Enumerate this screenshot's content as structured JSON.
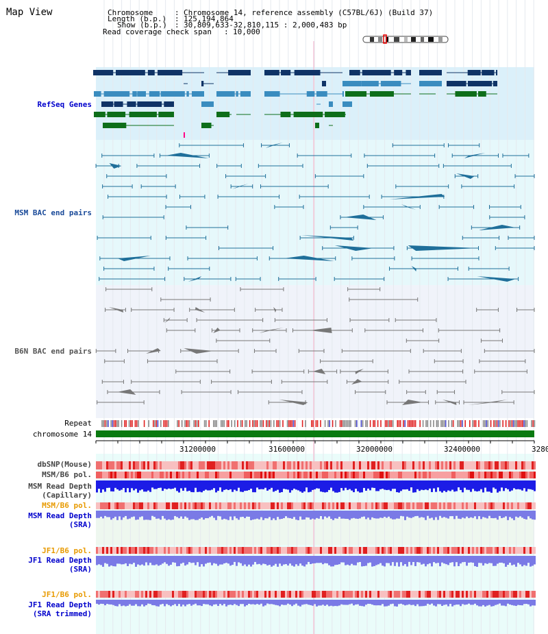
{
  "title": "Map View",
  "info": {
    "chromosome_label": "Chromosome",
    "chromosome_value": "Chromosome 14, reference assembly (C57BL/6J) (Build 37)",
    "length_label": "Length (b.p.)",
    "length_value": "125,194,864",
    "show_label": "Show (b.p.)",
    "show_value": "30,809,633-32,810,115 : 2,000,483 bp",
    "coverage_label": "Read coverage check span",
    "coverage_value": "10,000"
  },
  "tracks": {
    "refseq": "RefSeq Genes",
    "msm_bac": "MSM BAC end pairs",
    "b6n_bac": "B6N BAC end pairs",
    "repeat": "Repeat",
    "chromosome": "chromosome 14",
    "dbsnp": "dbSNP(Mouse)",
    "msm_b6_pol_1": "MSM/B6 pol.",
    "msm_depth_cap_1": "MSM Read Depth",
    "msm_depth_cap_2": "(Capillary)",
    "msm_b6_pol_2": "MSM/B6 pol.",
    "msm_depth_sra_1": "MSM Read Depth",
    "msm_depth_sra_2": "(SRA)",
    "jf1_b6_pol_1": "JF1/B6 pol.",
    "jf1_depth_sra_1": "JF1 Read Depth",
    "jf1_depth_sra_2": "(SRA)",
    "jf1_b6_pol_2": "JF1/B6 pol.",
    "jf1_depth_trim_1": "JF1 Read Depth",
    "jf1_depth_trim_2": "(SRA trimmed)"
  },
  "axis": {
    "ticks": [
      "31200000",
      "31600000",
      "32000000",
      "32400000",
      "3280"
    ]
  },
  "colors": {
    "refseq_bg": "#dbf0fa",
    "msm_bg": "#e6f8fb",
    "b6n_bg": "#f0f3fa",
    "gene_dark": "#0f3366",
    "gene_mid": "#3a8cbf",
    "gene_green": "#0e6e1a",
    "msm_line": "#1f6f9a",
    "b6n_line": "#777777",
    "chromosome_bar": "#0a7a10",
    "depth_blue": "#1c1ce6",
    "depth_light": "#7a7ae6",
    "label_blue": "#0000cc",
    "label_orange": "#e89a00",
    "label_darkblue": "#1a3a99"
  }
}
